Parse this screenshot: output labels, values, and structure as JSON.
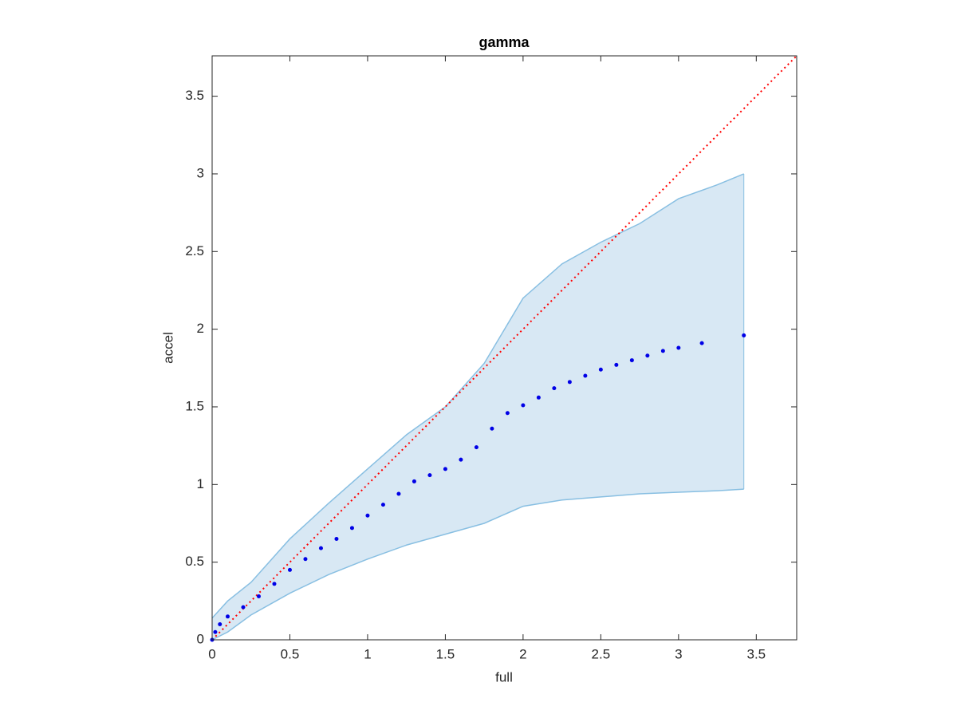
{
  "chart_data": {
    "type": "scatter",
    "title": "gamma",
    "x_label": "full",
    "y_label": "accel",
    "xlim": [
      0,
      3.76
    ],
    "ylim": [
      0,
      3.76
    ],
    "xticks": [
      0,
      0.5,
      1,
      1.5,
      2,
      2.5,
      3,
      3.5
    ],
    "yticks": [
      0,
      0.5,
      1,
      1.5,
      2,
      2.5,
      3,
      3.5
    ],
    "x": [
      0,
      0.02,
      0.05,
      0.1,
      0.2,
      0.3,
      0.4,
      0.5,
      0.6,
      0.7,
      0.8,
      0.9,
      1.0,
      1.1,
      1.2,
      1.3,
      1.4,
      1.5,
      1.6,
      1.7,
      1.8,
      1.9,
      2.0,
      2.1,
      2.2,
      2.3,
      2.4,
      2.5,
      2.6,
      2.7,
      2.8,
      2.9,
      3.0,
      3.15,
      3.42
    ],
    "y": [
      0,
      0.05,
      0.1,
      0.15,
      0.21,
      0.28,
      0.36,
      0.45,
      0.52,
      0.59,
      0.65,
      0.72,
      0.8,
      0.87,
      0.94,
      1.02,
      1.06,
      1.1,
      1.16,
      1.24,
      1.36,
      1.46,
      1.51,
      1.56,
      1.62,
      1.66,
      1.7,
      1.74,
      1.77,
      1.8,
      1.83,
      1.86,
      1.88,
      1.91,
      1.96
    ],
    "color": "#0000e6",
    "band": {
      "x": [
        0,
        0.1,
        0.25,
        0.5,
        0.75,
        1.0,
        1.25,
        1.5,
        1.75,
        2.0,
        2.25,
        2.5,
        2.75,
        3.0,
        3.25,
        3.42
      ],
      "upper": [
        0.14,
        0.25,
        0.37,
        0.65,
        0.88,
        1.1,
        1.32,
        1.5,
        1.78,
        2.2,
        2.42,
        2.56,
        2.68,
        2.84,
        2.93,
        3.0
      ],
      "lower": [
        0,
        0.05,
        0.16,
        0.3,
        0.42,
        0.52,
        0.61,
        0.68,
        0.75,
        0.86,
        0.9,
        0.92,
        0.94,
        0.95,
        0.96,
        0.97
      ],
      "fill": "#d8e8f4",
      "line_color": "#88bfe2"
    },
    "reference_line": {
      "x": [
        0,
        3.76
      ],
      "y": [
        0,
        3.76
      ],
      "color": "#ff0000"
    }
  }
}
